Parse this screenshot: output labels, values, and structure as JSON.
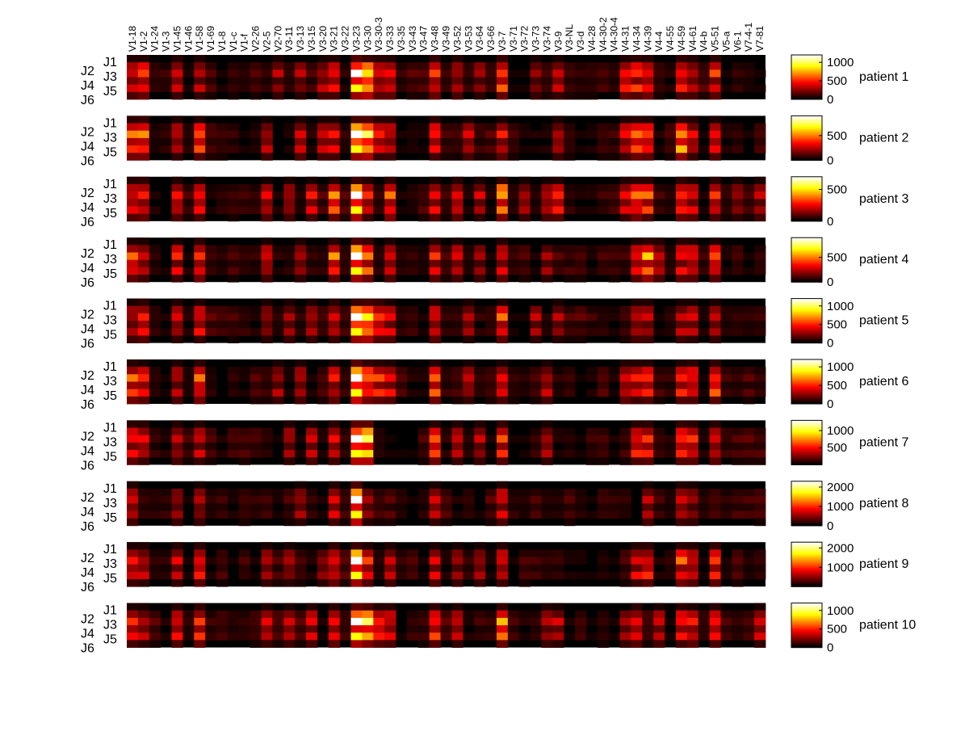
{
  "chart_data": {
    "type": "heatmap",
    "x_labels": [
      "V1-18",
      "V1-2",
      "V1-24",
      "V1-3",
      "V1-45",
      "V1-46",
      "V1-58",
      "V1-69",
      "V1-8",
      "V1-c",
      "V1-f",
      "V2-26",
      "V2-5",
      "V2-70",
      "V3-11",
      "V3-13",
      "V3-15",
      "V3-20",
      "V3-21",
      "V3-22",
      "V3-23",
      "V3-30",
      "V3-30-3",
      "V3-33",
      "V3-35",
      "V3-43",
      "V3-47",
      "V3-48",
      "V3-49",
      "V3-52",
      "V3-53",
      "V3-64",
      "V3-66",
      "V3-7",
      "V3-71",
      "V3-72",
      "V3-73",
      "V3-74",
      "V3-9",
      "V3-NL",
      "V3-d",
      "V4-28",
      "V4-30-2",
      "V4-30-4",
      "V4-31",
      "V4-34",
      "V4-39",
      "V4-4",
      "V4-55",
      "V4-59",
      "V4-61",
      "V4-b",
      "V5-51",
      "V5-a",
      "V6-1",
      "V7-4-1",
      "V7-81"
    ],
    "row_labels_odd": [
      "J1",
      "J3",
      "J5"
    ],
    "row_labels_even": [
      "J2",
      "J4",
      "J6"
    ],
    "colormap": "hot",
    "panels": [
      {
        "label": "patient 1",
        "colorbar_ticks": [
          "0",
          "500",
          "1000"
        ],
        "vmax": 1200,
        "peak": 1200,
        "hot": {
          "0": 0.45,
          "1": 0.55,
          "4": 0.4,
          "6": 0.35,
          "13": 0.3,
          "15": 0.3,
          "17": 0.35,
          "18": 0.55,
          "20": 1.0,
          "21": 0.9,
          "22": 0.45,
          "23": 0.55,
          "27": 0.5,
          "29": 0.35,
          "31": 0.3,
          "33": 0.6,
          "36": 0.3,
          "38": 0.35,
          "44": 0.5,
          "45": 0.55,
          "46": 0.55,
          "49": 0.6,
          "50": 0.4,
          "52": 0.5
        }
      },
      {
        "label": "patient 2",
        "colorbar_ticks": [
          "0",
          "500"
        ],
        "vmax": 900,
        "peak": 900,
        "hot": {
          "0": 0.6,
          "1": 0.65,
          "4": 0.4,
          "6": 0.6,
          "12": 0.35,
          "15": 0.4,
          "17": 0.35,
          "18": 0.45,
          "20": 1.0,
          "21": 0.9,
          "22": 0.45,
          "23": 0.4,
          "27": 0.5,
          "30": 0.35,
          "33": 0.45,
          "38": 0.35,
          "44": 0.45,
          "45": 0.6,
          "46": 0.55,
          "49": 0.75,
          "50": 0.4,
          "52": 0.5
        }
      },
      {
        "label": "patient 3",
        "colorbar_ticks": [
          "0",
          "500"
        ],
        "vmax": 700,
        "peak": 700,
        "hot": {
          "0": 0.45,
          "1": 0.5,
          "4": 0.45,
          "6": 0.45,
          "12": 0.4,
          "14": 0.35,
          "16": 0.4,
          "18": 0.65,
          "20": 1.0,
          "21": 0.45,
          "23": 0.65,
          "27": 0.45,
          "29": 0.45,
          "31": 0.35,
          "33": 0.85,
          "35": 0.35,
          "37": 0.35,
          "38": 0.5,
          "44": 0.4,
          "45": 0.6,
          "46": 0.6,
          "49": 0.5,
          "50": 0.45,
          "52": 0.5,
          "54": 0.35,
          "56": 0.35
        }
      },
      {
        "label": "patient 4",
        "colorbar_ticks": [
          "0",
          "500"
        ],
        "vmax": 900,
        "peak": 900,
        "hot": {
          "0": 0.55,
          "1": 0.45,
          "4": 0.45,
          "6": 0.55,
          "12": 0.4,
          "15": 0.35,
          "18": 0.6,
          "20": 1.0,
          "21": 0.6,
          "23": 0.45,
          "27": 0.45,
          "29": 0.45,
          "31": 0.3,
          "33": 0.45,
          "37": 0.3,
          "45": 0.45,
          "46": 0.75,
          "47": 0.4,
          "49": 0.45,
          "50": 0.5,
          "52": 0.55
        }
      },
      {
        "label": "patient 5",
        "colorbar_ticks": [
          "0",
          "500",
          "1000"
        ],
        "vmax": 1200,
        "peak": 1200,
        "hot": {
          "0": 0.35,
          "1": 0.45,
          "4": 0.35,
          "6": 0.45,
          "12": 0.3,
          "14": 0.3,
          "16": 0.3,
          "18": 0.45,
          "20": 1.0,
          "21": 0.95,
          "22": 0.55,
          "23": 0.4,
          "27": 0.45,
          "30": 0.3,
          "33": 0.55,
          "36": 0.3,
          "38": 0.3,
          "45": 0.35,
          "46": 0.35,
          "49": 0.35,
          "50": 0.35,
          "52": 0.3
        }
      },
      {
        "label": "patient 6",
        "colorbar_ticks": [
          "0",
          "500",
          "1000"
        ],
        "vmax": 1200,
        "peak": 1200,
        "hot": {
          "0": 0.55,
          "1": 0.45,
          "4": 0.35,
          "6": 0.55,
          "13": 0.35,
          "15": 0.35,
          "18": 0.45,
          "20": 1.0,
          "21": 0.65,
          "22": 0.5,
          "23": 0.45,
          "27": 0.6,
          "30": 0.35,
          "33": 0.45,
          "37": 0.35,
          "44": 0.45,
          "45": 0.45,
          "46": 0.5,
          "49": 0.5,
          "50": 0.5,
          "52": 0.6
        }
      },
      {
        "label": "patient 7",
        "colorbar_ticks": [
          "500",
          "1000"
        ],
        "vmax": 1300,
        "peak": 1300,
        "hot": {
          "0": 0.5,
          "1": 0.45,
          "4": 0.35,
          "6": 0.4,
          "14": 0.35,
          "16": 0.35,
          "18": 0.5,
          "20": 1.0,
          "21": 0.95,
          "27": 0.55,
          "29": 0.35,
          "31": 0.35,
          "33": 0.55,
          "37": 0.35,
          "45": 0.5,
          "46": 0.5,
          "49": 0.6,
          "50": 0.45,
          "52": 0.45
        }
      },
      {
        "label": "patient 8",
        "colorbar_ticks": [
          "0",
          "1000",
          "2000"
        ],
        "vmax": 2300,
        "peak": 2300,
        "hot": {
          "0": 0.35,
          "4": 0.3,
          "6": 0.3,
          "15": 0.3,
          "18": 0.4,
          "20": 1.0,
          "21": 0.3,
          "27": 0.35,
          "33": 0.45,
          "46": 0.35,
          "49": 0.35,
          "50": 0.3
        }
      },
      {
        "label": "patient 9",
        "colorbar_ticks": [
          "1000",
          "2000"
        ],
        "vmax": 2300,
        "peak": 2300,
        "hot": {
          "0": 0.45,
          "1": 0.35,
          "4": 0.4,
          "6": 0.5,
          "12": 0.3,
          "14": 0.3,
          "17": 0.3,
          "18": 0.5,
          "20": 1.0,
          "21": 0.5,
          "23": 0.35,
          "27": 0.4,
          "29": 0.3,
          "31": 0.3,
          "33": 0.45,
          "45": 0.45,
          "46": 0.5,
          "49": 0.55,
          "50": 0.45,
          "52": 0.5
        }
      },
      {
        "label": "patient 10",
        "colorbar_ticks": [
          "0",
          "500",
          "1000"
        ],
        "vmax": 1200,
        "peak": 1200,
        "hot": {
          "0": 0.5,
          "1": 0.35,
          "4": 0.45,
          "6": 0.5,
          "12": 0.45,
          "14": 0.4,
          "16": 0.4,
          "18": 0.5,
          "20": 1.0,
          "21": 0.9,
          "22": 0.55,
          "23": 0.45,
          "27": 0.55,
          "29": 0.35,
          "33": 0.75,
          "37": 0.35,
          "38": 0.35,
          "44": 0.35,
          "45": 0.45,
          "47": 0.4,
          "49": 0.5,
          "50": 0.45,
          "52": 0.45,
          "56": 0.4
        }
      }
    ]
  }
}
